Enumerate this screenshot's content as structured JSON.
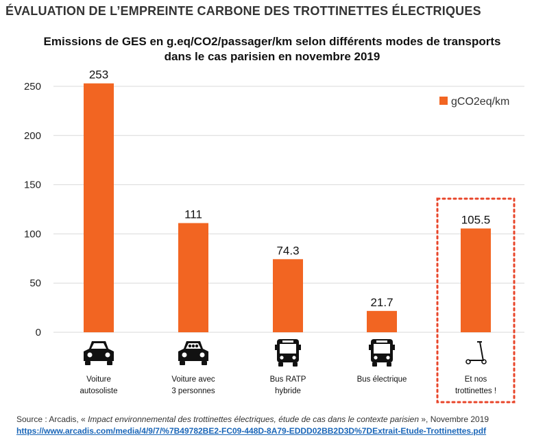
{
  "page": {
    "title": "ÉVALUATION DE L’EMPREINTE CARBONE DES TROTTINETTES ÉLECTRIQUES"
  },
  "chart_data": {
    "type": "bar",
    "title_lines": [
      "Emissions de GES en g.eq/CO2/passager/km selon différents modes de transports",
      "dans le cas parisien en novembre 2019"
    ],
    "categories": [
      [
        "Voiture",
        "autosoliste"
      ],
      [
        "Voiture avec",
        "3 personnes"
      ],
      [
        "Bus RATP",
        "hybride"
      ],
      [
        "Bus électrique"
      ],
      [
        "Et nos",
        "trottinettes !"
      ]
    ],
    "category_icons": [
      "car-icon",
      "car-with-passengers-icon",
      "bus-icon",
      "electric-bus-icon",
      "scooter-icon"
    ],
    "series": [
      {
        "name": "gCO2eq/km",
        "values": [
          253,
          111,
          74.3,
          21.7,
          105.5
        ],
        "color": "#f26522"
      }
    ],
    "data_labels": [
      "253",
      "111",
      "74.3",
      "21.7",
      "105.5"
    ],
    "ylim": [
      0,
      250
    ],
    "yticks": [
      0,
      50,
      100,
      150,
      200,
      250
    ],
    "grid": true,
    "legend_position": "top-right",
    "highlight_index": 4,
    "highlight_color": "#e8452a"
  },
  "source": {
    "prefix": "Source : Arcadis, « ",
    "italic": "Impact environnemental des trottinettes électriques, étude de cas dans le contexte parisien",
    "suffix": " », Novembre 2019",
    "url": "https://www.arcadis.com/media/4/9/7/%7B49782BE2-FC09-448D-8A79-EDDD02BB2D3D%7DExtrait-Etude-Trottinettes.pdf"
  }
}
